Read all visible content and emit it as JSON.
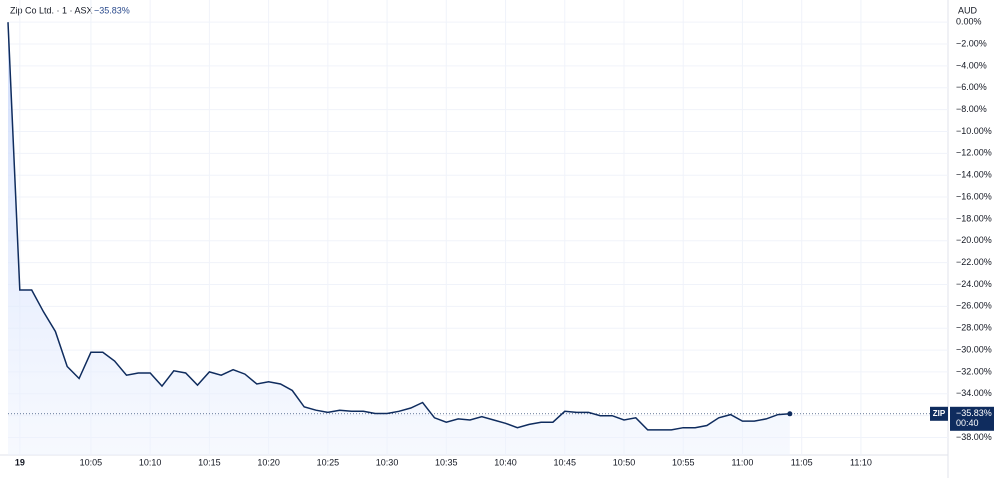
{
  "chart_data": {
    "type": "line",
    "header": "Zip Co Ltd. · 1 · ASX",
    "last_value_label": "−35.83%",
    "currency": "AUD",
    "symbol": "ZIP",
    "countdown": "00:40",
    "x": [
      "09:58",
      "09:59",
      "10:00",
      "10:01",
      "10:02",
      "10:03",
      "10:04",
      "10:05",
      "10:06",
      "10:07",
      "10:08",
      "10:09",
      "10:10",
      "10:11",
      "10:12",
      "10:13",
      "10:14",
      "10:15",
      "10:16",
      "10:17",
      "10:18",
      "10:19",
      "10:20",
      "10:21",
      "10:22",
      "10:23",
      "10:24",
      "10:25",
      "10:26",
      "10:27",
      "10:28",
      "10:29",
      "10:30",
      "10:31",
      "10:32",
      "10:33",
      "10:34",
      "10:35",
      "10:36",
      "10:37",
      "10:38",
      "10:39",
      "10:40",
      "10:41",
      "10:42",
      "10:43",
      "10:44",
      "10:45",
      "10:46",
      "10:47",
      "10:48",
      "10:49",
      "10:50",
      "10:51",
      "10:52",
      "10:53",
      "10:54",
      "10:55",
      "10:56",
      "10:57",
      "10:58",
      "10:59",
      "11:00",
      "11:01",
      "11:02",
      "11:03",
      "11:04"
    ],
    "series": [
      {
        "name": "ZIP",
        "color": "#0f2c5e",
        "values": [
          0,
          -24.5,
          -24.5,
          -26.5,
          -28.3,
          -31.5,
          -32.6,
          -30.2,
          -30.2,
          -31,
          -32.3,
          -32.1,
          -32.1,
          -33.3,
          -31.9,
          -32.1,
          -33.2,
          -32,
          -32.3,
          -31.8,
          -32.2,
          -33.1,
          -32.9,
          -33.1,
          -33.7,
          -35.2,
          -35.5,
          -35.7,
          -35.5,
          -35.6,
          -35.6,
          -35.8,
          -35.8,
          -35.6,
          -35.3,
          -34.8,
          -36.2,
          -36.6,
          -36.3,
          -36.4,
          -36.1,
          -36.4,
          -36.7,
          -37.1,
          -36.8,
          -36.6,
          -36.6,
          -35.6,
          -35.7,
          -35.7,
          -36,
          -36,
          -36.4,
          -36.2,
          -37.3,
          -37.3,
          -37.3,
          -37.1,
          -37.1,
          -36.9,
          -36.2,
          -35.9,
          -36.5,
          -36.5,
          -36.3,
          -35.9,
          -35.83
        ]
      }
    ],
    "xlim": [
      "09:58",
      "11:16"
    ],
    "xticks": [
      {
        "value": "09:59",
        "label": "19"
      },
      "10:05",
      "10:10",
      "10:15",
      "10:20",
      "10:25",
      "10:30",
      "10:35",
      "10:40",
      "10:45",
      "10:50",
      "10:55",
      "11:00",
      "11:05",
      "11:10"
    ],
    "ylim": [
      -39.6,
      0.2
    ],
    "yticks": [
      {
        "value": 0,
        "label": "0.00%"
      },
      {
        "value": -2,
        "label": "−2.00%"
      },
      {
        "value": -4,
        "label": "−4.00%"
      },
      {
        "value": -6,
        "label": "−6.00%"
      },
      {
        "value": -8,
        "label": "−8.00%"
      },
      {
        "value": -10,
        "label": "−10.00%"
      },
      {
        "value": -12,
        "label": "−12.00%"
      },
      {
        "value": -14,
        "label": "−14.00%"
      },
      {
        "value": -16,
        "label": "−16.00%"
      },
      {
        "value": -18,
        "label": "−18.00%"
      },
      {
        "value": -20,
        "label": "−20.00%"
      },
      {
        "value": -22,
        "label": "−22.00%"
      },
      {
        "value": -24,
        "label": "−24.00%"
      },
      {
        "value": -26,
        "label": "−26.00%"
      },
      {
        "value": -28,
        "label": "−28.00%"
      },
      {
        "value": -30,
        "label": "−30.00%"
      },
      {
        "value": -32,
        "label": "−32.00%"
      },
      {
        "value": -34,
        "label": "−34.00%"
      },
      {
        "value": -36,
        "label": "−36.00%"
      },
      {
        "value": -38,
        "label": "−38.00%"
      }
    ],
    "grid": true
  }
}
